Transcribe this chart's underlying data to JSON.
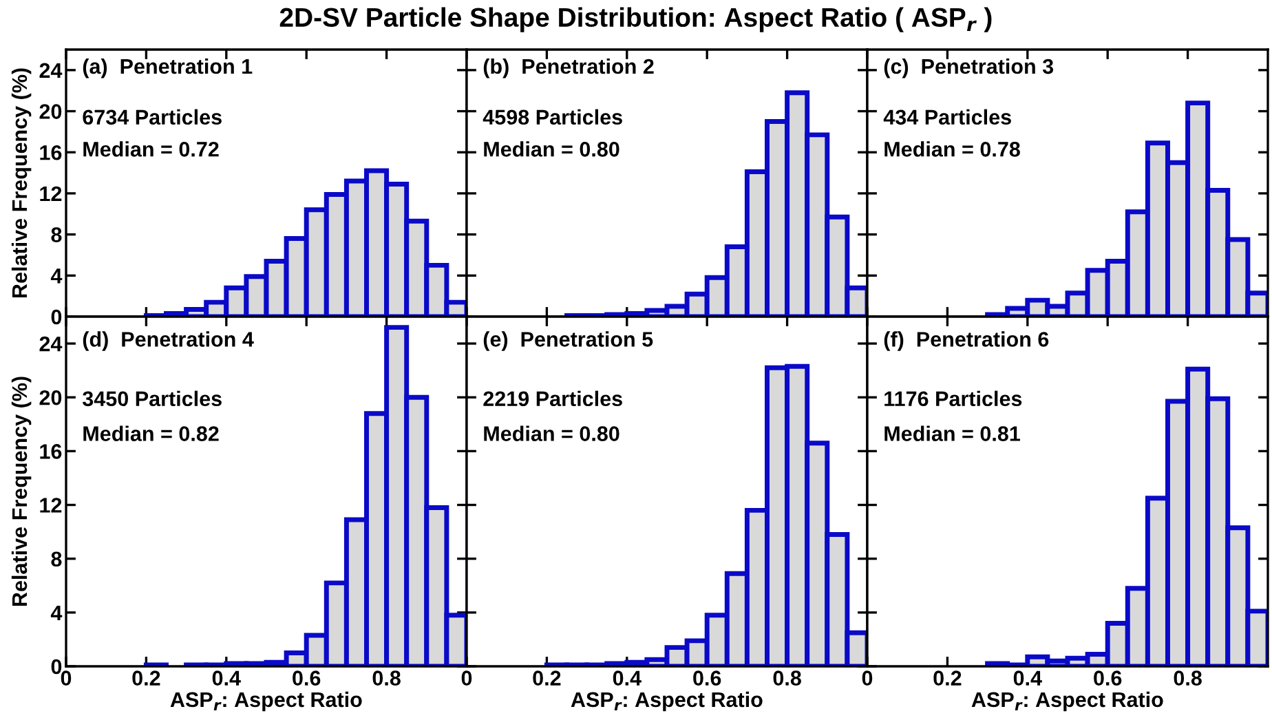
{
  "chart_data": [
    {
      "type": "histogram",
      "title": "2D-SV Particle Shape Distribution: Aspect Ratio ( ASP$_{r}$ )",
      "ylabel": "Relative Frequency (%)",
      "annotations": [
        "(a)  Penetration 1",
        "6734 Particles",
        "Median = 0.72"
      ],
      "bins": [
        0.2,
        0.25,
        0.3,
        0.35,
        0.4,
        0.45,
        0.5,
        0.55,
        0.6,
        0.65,
        0.7,
        0.75,
        0.8,
        0.85,
        0.9,
        0.95,
        1.0
      ],
      "values": [
        0.1,
        0.3,
        0.7,
        1.4,
        2.8,
        3.9,
        5.4,
        7.6,
        10.4,
        11.9,
        13.2,
        14.2,
        12.9,
        9.3,
        5.0,
        1.4
      ],
      "color": "#d9d9d9",
      "xlim": [
        0,
        1
      ],
      "ylim": [
        0,
        26
      ],
      "xticks": [
        0,
        0.2,
        0.4,
        0.6,
        0.8
      ],
      "yticks": [
        0,
        4,
        8,
        12,
        16,
        20,
        24
      ],
      "tick_labels": "y",
      "grid": false
    },
    {
      "type": "histogram",
      "annotations": [
        "(b)  Penetration 2",
        "4598 Particles",
        "Median = 0.80"
      ],
      "bins": [
        0.2,
        0.25,
        0.3,
        0.35,
        0.4,
        0.45,
        0.5,
        0.55,
        0.6,
        0.65,
        0.7,
        0.75,
        0.8,
        0.85,
        0.9,
        0.95,
        1.0
      ],
      "values": [
        0,
        0.1,
        0.1,
        0.2,
        0.3,
        0.6,
        1.0,
        2.2,
        3.8,
        6.8,
        14.1,
        19.0,
        21.8,
        17.7,
        9.7,
        2.8
      ],
      "color": "#d9d9d9",
      "xlim": [
        0,
        1
      ],
      "ylim": [
        0,
        26
      ],
      "xticks": [
        0,
        0.2,
        0.4,
        0.6,
        0.8
      ],
      "yticks": [
        0,
        4,
        8,
        12,
        16,
        20,
        24
      ],
      "tick_labels": false,
      "grid": false
    },
    {
      "type": "histogram",
      "annotations": [
        "(c)  Penetration 3",
        "434 Particles",
        "Median = 0.78"
      ],
      "bins": [
        0.2,
        0.25,
        0.3,
        0.35,
        0.4,
        0.45,
        0.5,
        0.55,
        0.6,
        0.65,
        0.7,
        0.75,
        0.8,
        0.85,
        0.9,
        0.95,
        1.0
      ],
      "values": [
        0,
        0,
        0.2,
        0.8,
        1.6,
        1.0,
        2.3,
        4.5,
        5.4,
        10.2,
        16.9,
        15.0,
        20.8,
        12.3,
        7.5,
        2.3
      ],
      "color": "#d9d9d9",
      "xlim": [
        0,
        1
      ],
      "ylim": [
        0,
        26
      ],
      "xticks": [
        0,
        0.2,
        0.4,
        0.6,
        0.8
      ],
      "yticks": [
        0,
        4,
        8,
        12,
        16,
        20,
        24
      ],
      "tick_labels": false,
      "grid": false
    },
    {
      "type": "histogram",
      "xlabel": "ASP$_{r}$: Aspect Ratio",
      "ylabel": "Relative Frequency (%)",
      "annotations": [
        "(d)  Penetration 4",
        "3450 Particles",
        "Median = 0.82"
      ],
      "bins": [
        0.2,
        0.25,
        0.3,
        0.35,
        0.4,
        0.45,
        0.5,
        0.55,
        0.6,
        0.65,
        0.7,
        0.75,
        0.8,
        0.85,
        0.9,
        0.95,
        1.0
      ],
      "values": [
        0.1,
        0,
        0.1,
        0.1,
        0.2,
        0.2,
        0.3,
        1.0,
        2.3,
        6.2,
        10.9,
        18.8,
        25.2,
        20.0,
        11.8,
        3.8
      ],
      "color": "#d9d9d9",
      "xlim": [
        0,
        1
      ],
      "ylim": [
        0,
        26
      ],
      "xticks": [
        0,
        0.2,
        0.4,
        0.6,
        0.8
      ],
      "yticks": [
        0,
        4,
        8,
        12,
        16,
        20,
        24
      ],
      "grid": false
    },
    {
      "type": "histogram",
      "xlabel": "ASP$_{r}$: Aspect Ratio",
      "annotations": [
        "(e)  Penetration 5",
        "2219 Particles",
        "Median = 0.80"
      ],
      "bins": [
        0.2,
        0.25,
        0.3,
        0.35,
        0.4,
        0.45,
        0.5,
        0.55,
        0.6,
        0.65,
        0.7,
        0.75,
        0.8,
        0.85,
        0.9,
        0.95,
        1.0
      ],
      "values": [
        0.1,
        0.1,
        0.1,
        0.2,
        0.3,
        0.5,
        1.4,
        1.9,
        3.8,
        6.9,
        11.6,
        22.2,
        22.3,
        16.6,
        9.8,
        2.5
      ],
      "color": "#d9d9d9",
      "xlim": [
        0,
        1
      ],
      "ylim": [
        0,
        26
      ],
      "xticks": [
        0,
        0.2,
        0.4,
        0.6,
        0.8
      ],
      "yticks": [
        0,
        4,
        8,
        12,
        16,
        20,
        24
      ],
      "tick_labels": "x",
      "grid": false
    },
    {
      "type": "histogram",
      "xlabel": "ASP$_{r}$: Aspect Ratio",
      "annotations": [
        "(f)  Penetration 6",
        "1176 Particles",
        "Median = 0.81"
      ],
      "bins": [
        0.2,
        0.25,
        0.3,
        0.35,
        0.4,
        0.45,
        0.5,
        0.55,
        0.6,
        0.65,
        0.7,
        0.75,
        0.8,
        0.85,
        0.9,
        0.95,
        1.0
      ],
      "values": [
        0,
        0,
        0.2,
        0.1,
        0.7,
        0.4,
        0.6,
        0.9,
        3.2,
        5.8,
        12.5,
        19.7,
        22.1,
        19.9,
        10.3,
        4.1
      ],
      "color": "#d9d9d9",
      "xlim": [
        0,
        1
      ],
      "ylim": [
        0,
        26
      ],
      "xticks": [
        0,
        0.2,
        0.4,
        0.6,
        0.8
      ],
      "yticks": [
        0,
        4,
        8,
        12,
        16,
        20,
        24
      ],
      "tick_labels": "x",
      "grid": false
    }
  ]
}
